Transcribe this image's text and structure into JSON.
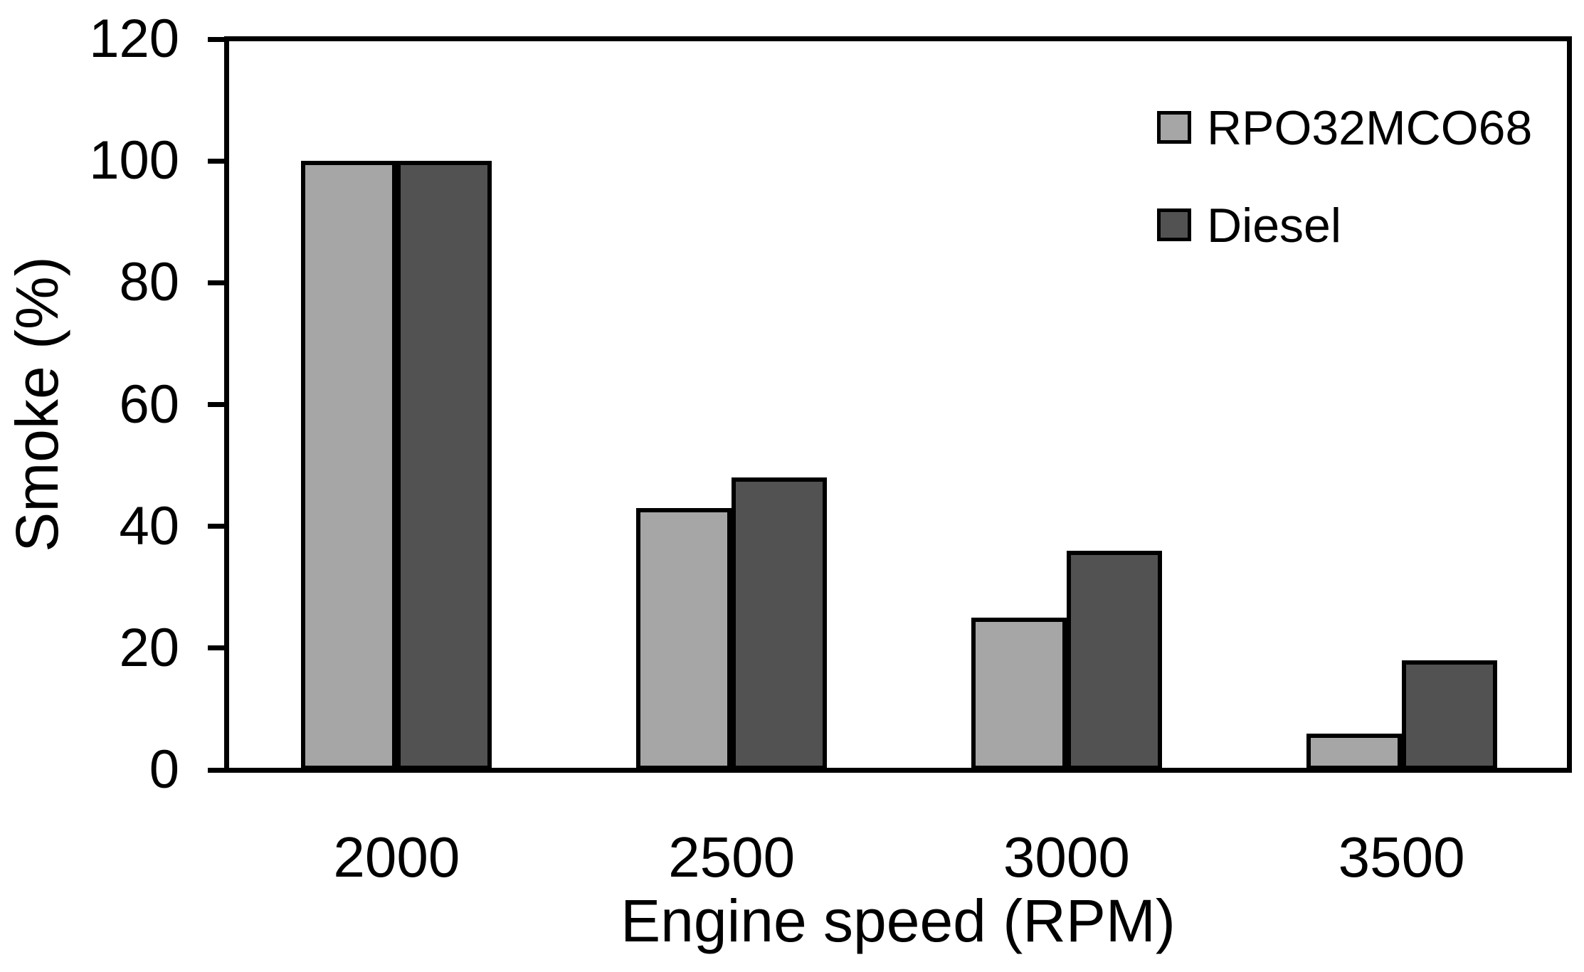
{
  "chart_data": {
    "type": "bar",
    "title": "",
    "categories": [
      "2000",
      "2500",
      "3000",
      "3500"
    ],
    "series": [
      {
        "name": "RPO32MCO68",
        "color": "#a6a6a6",
        "values": [
          100,
          43,
          25,
          6
        ]
      },
      {
        "name": "Diesel",
        "color": "#525252",
        "values": [
          100,
          48,
          36,
          18
        ]
      }
    ],
    "xlabel": "Engine speed (RPM)",
    "ylabel": "Smoke (%)",
    "ylim": [
      0,
      120
    ],
    "ytick_step": 20,
    "yticks": [
      0,
      20,
      40,
      60,
      80,
      100,
      120
    ],
    "grid": false,
    "legend_position": "top-right-inside",
    "axis_color": "#000000",
    "bar_border_color": "#000000",
    "text_color": "#000000"
  }
}
